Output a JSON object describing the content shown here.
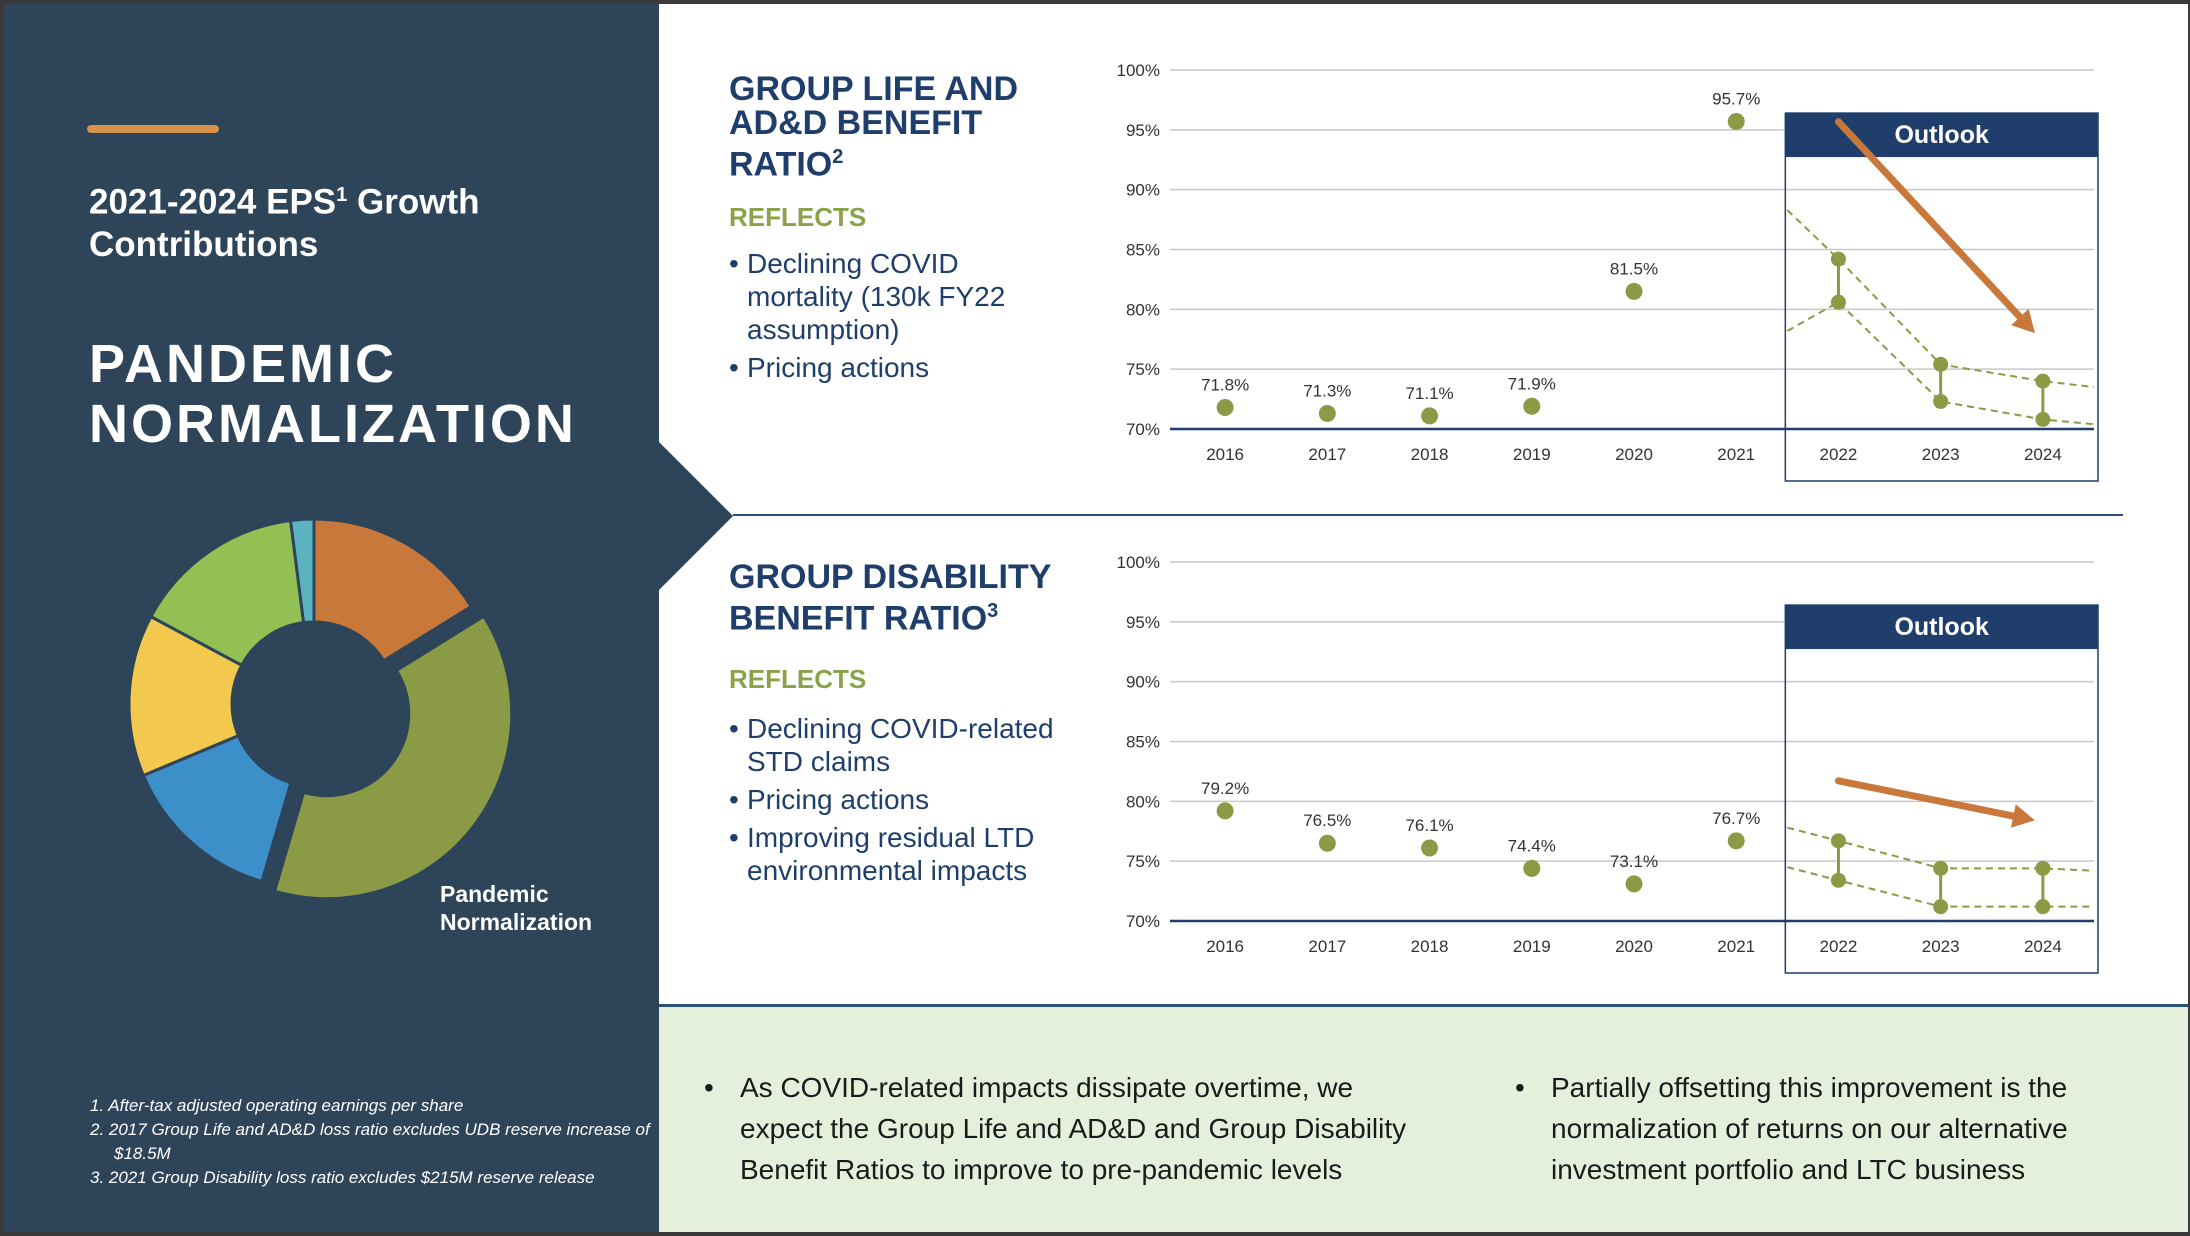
{
  "left_panel": {
    "subtitle_prefix": "2021-2024 EPS",
    "subtitle_sup": "1",
    "subtitle_suffix": " Growth Contributions",
    "headline": "PANDEMIC NORMALIZATION",
    "donut_label": "Pandemic\nNormalization",
    "donut_segments": [
      {
        "value": 16,
        "color": "#c8783a"
      },
      {
        "value": 38,
        "color": "#8a9a45",
        "highlight": true
      },
      {
        "value": 14,
        "color": "#3d8fc9"
      },
      {
        "value": 14,
        "color": "#f2c94c"
      },
      {
        "value": 15,
        "color": "#93c052"
      },
      {
        "value": 2,
        "color": "#5bb3c2"
      }
    ],
    "footnotes": [
      "1.  After-tax adjusted operating earnings per share",
      "2.  2017 Group Life and AD&D loss ratio excludes UDB reserve increase of $18.5M",
      "3.  2021 Group Disability loss ratio excludes $215M reserve release"
    ]
  },
  "life_section": {
    "title_main": "GROUP LIFE AND AD&D BENEFIT RATIO",
    "title_sup": "2",
    "reflects": "REFLECTS",
    "bullets": [
      "Declining COVID mortality (130k FY22 assumption)",
      "Pricing actions"
    ]
  },
  "disability_section": {
    "title_main": "GROUP DISABILITY BENEFIT RATIO",
    "title_sup": "3",
    "reflects": "REFLECTS",
    "bullets": [
      "Declining COVID-related STD claims",
      "Pricing actions",
      "Improving residual LTD environmental impacts"
    ]
  },
  "chart_data": [
    {
      "type": "scatter",
      "title": "",
      "categories": [
        "2016",
        "2017",
        "2018",
        "2019",
        "2020",
        "2021",
        "2022",
        "2023",
        "2024"
      ],
      "historical": [
        71.8,
        71.3,
        71.1,
        71.9,
        81.5,
        95.7
      ],
      "labels": [
        "71.8%",
        "71.3%",
        "71.1%",
        "71.9%",
        "81.5%",
        "95.7%"
      ],
      "outlook_label": "Outlook",
      "outlook_ranges": [
        [
          80.6,
          84.2
        ],
        [
          72.3,
          75.4
        ],
        [
          70.8,
          74.0
        ]
      ],
      "outlook_band_start": [
        78.2,
        88.3
      ],
      "outlook_band_end": [
        70.4,
        73.5
      ],
      "ylim": [
        70,
        100
      ],
      "yticks": [
        "70%",
        "75%",
        "80%",
        "85%",
        "90%",
        "95%",
        "100%"
      ],
      "grid": true,
      "colors": {
        "points": "#8a9a45",
        "arrow": "#c8783a",
        "outlook": "#1f3e6b"
      }
    },
    {
      "type": "scatter",
      "title": "",
      "categories": [
        "2016",
        "2017",
        "2018",
        "2019",
        "2020",
        "2021",
        "2022",
        "2023",
        "2024"
      ],
      "historical": [
        79.2,
        76.5,
        76.1,
        74.4,
        73.1,
        76.7
      ],
      "labels": [
        "79.2%",
        "76.5%",
        "76.1%",
        "74.4%",
        "73.1%",
        "76.7%"
      ],
      "outlook_label": "Outlook",
      "outlook_ranges": [
        [
          73.4,
          76.7
        ],
        [
          71.2,
          74.4
        ],
        [
          71.2,
          74.4
        ]
      ],
      "outlook_band_start": [
        74.5,
        77.8
      ],
      "outlook_band_end": [
        71.2,
        74.2
      ],
      "ylim": [
        70,
        100
      ],
      "yticks": [
        "70%",
        "75%",
        "80%",
        "85%",
        "90%",
        "95%",
        "100%"
      ],
      "grid": true,
      "colors": {
        "points": "#8a9a45",
        "arrow": "#c8783a",
        "outlook": "#1f3e6b"
      }
    }
  ],
  "bottom": {
    "left_text": "As COVID-related impacts dissipate overtime, we expect the Group Life and AD&D and Group Disability Benefit Ratios to improve to pre-pandemic levels",
    "right_text": "Partially offsetting this improvement is the normalization of returns on our alternative investment portfolio and LTC business",
    "bullet": "•"
  }
}
